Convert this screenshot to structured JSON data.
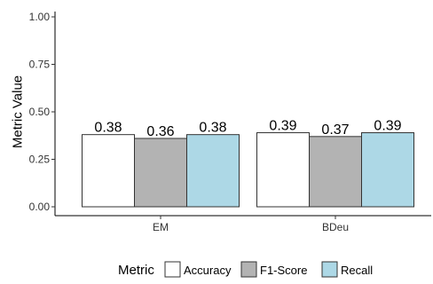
{
  "chart_data": {
    "type": "bar",
    "title": "",
    "xlabel": "",
    "ylabel": "Metric Value",
    "categories": [
      "EM",
      "BDeu"
    ],
    "series": [
      {
        "name": "Accuracy",
        "values": [
          0.38,
          0.39
        ],
        "labels": [
          "0.38",
          "0.39"
        ],
        "color": "#ffffff"
      },
      {
        "name": "F1-Score",
        "values": [
          0.36,
          0.37
        ],
        "labels": [
          "0.36",
          "0.37"
        ],
        "color": "#b3b3b3"
      },
      {
        "name": "Recall",
        "values": [
          0.38,
          0.39
        ],
        "labels": [
          "0.38",
          "0.39"
        ],
        "color": "#add8e6"
      }
    ],
    "ylim": [
      0,
      1
    ],
    "yticks": [
      "0.00",
      "0.25",
      "0.50",
      "0.75",
      "1.00"
    ],
    "grid": false,
    "legend": {
      "title": "Metric",
      "position": "bottom"
    }
  }
}
